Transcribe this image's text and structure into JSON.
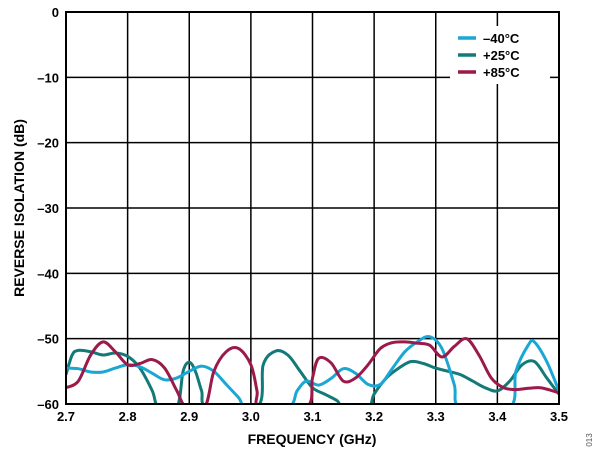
{
  "chart_data": {
    "type": "line",
    "xlabel": "FREQUENCY (GHz)",
    "ylabel": "REVERSE ISOLATION (dB)",
    "xlim": [
      2.7,
      3.5
    ],
    "ylim": [
      -60,
      0
    ],
    "xticks": [
      "2.7",
      "2.8",
      "2.9",
      "3.0",
      "3.1",
      "3.2",
      "3.3",
      "3.4",
      "3.5"
    ],
    "yticks": [
      "0",
      "–10",
      "–20",
      "–30",
      "–40",
      "–50",
      "–60"
    ],
    "xtick_values": [
      2.7,
      2.8,
      2.9,
      3.0,
      3.1,
      3.2,
      3.3,
      3.4,
      3.5
    ],
    "ytick_values": [
      0,
      -10,
      -20,
      -30,
      -40,
      -50,
      -60
    ],
    "grid": true,
    "legend_position": "top-right",
    "figure_id": "013",
    "series": [
      {
        "name": "–40°C",
        "color": "#1aa7d4",
        "points": [
          [
            2.7,
            -54.5
          ],
          [
            2.72,
            -54.6
          ],
          [
            2.74,
            -55.1
          ],
          [
            2.76,
            -55.1
          ],
          [
            2.78,
            -54.5
          ],
          [
            2.8,
            -54.0
          ],
          [
            2.82,
            -54.3
          ],
          [
            2.84,
            -55.3
          ],
          [
            2.86,
            -56.3
          ],
          [
            2.88,
            -56.0
          ],
          [
            2.9,
            -55.0
          ],
          [
            2.92,
            -54.2
          ],
          [
            2.94,
            -55.0
          ],
          [
            2.96,
            -57.0
          ],
          [
            2.98,
            -59.0
          ],
          [
            2.995,
            -60.5
          ],
          [
            3.06,
            -60.5
          ],
          [
            3.075,
            -58.0
          ],
          [
            3.09,
            -56.5
          ],
          [
            3.11,
            -57.1
          ],
          [
            3.13,
            -56.1
          ],
          [
            3.15,
            -54.6
          ],
          [
            3.17,
            -55.3
          ],
          [
            3.19,
            -57.0
          ],
          [
            3.21,
            -57.0
          ],
          [
            3.23,
            -54.5
          ],
          [
            3.25,
            -52.0
          ],
          [
            3.27,
            -50.5
          ],
          [
            3.29,
            -49.7
          ],
          [
            3.31,
            -51.5
          ],
          [
            3.33,
            -57.0
          ],
          [
            3.34,
            -60.5
          ],
          [
            3.42,
            -60.5
          ],
          [
            3.43,
            -55.0
          ],
          [
            3.45,
            -51.0
          ],
          [
            3.46,
            -50.5
          ],
          [
            3.48,
            -53.5
          ],
          [
            3.5,
            -58.0
          ]
        ]
      },
      {
        "name": "+25°C",
        "color": "#127a78",
        "points": [
          [
            2.7,
            -55.5
          ],
          [
            2.71,
            -52.5
          ],
          [
            2.72,
            -51.8
          ],
          [
            2.74,
            -52.0
          ],
          [
            2.76,
            -52.5
          ],
          [
            2.78,
            -52.2
          ],
          [
            2.8,
            -52.7
          ],
          [
            2.82,
            -54.5
          ],
          [
            2.84,
            -58.0
          ],
          [
            2.85,
            -60.5
          ],
          [
            2.88,
            -60.5
          ],
          [
            2.89,
            -55.0
          ],
          [
            2.9,
            -53.6
          ],
          [
            2.91,
            -55.0
          ],
          [
            2.92,
            -58.0
          ],
          [
            2.93,
            -60.5
          ],
          [
            3.01,
            -60.5
          ],
          [
            3.02,
            -54.0
          ],
          [
            3.04,
            -51.9
          ],
          [
            3.06,
            -52.5
          ],
          [
            3.08,
            -55.0
          ],
          [
            3.1,
            -57.5
          ],
          [
            3.12,
            -58.5
          ],
          [
            3.14,
            -59.5
          ],
          [
            3.15,
            -60.5
          ],
          [
            3.19,
            -60.5
          ],
          [
            3.2,
            -58.5
          ],
          [
            3.22,
            -56.0
          ],
          [
            3.24,
            -54.5
          ],
          [
            3.26,
            -53.5
          ],
          [
            3.28,
            -53.8
          ],
          [
            3.3,
            -54.5
          ],
          [
            3.32,
            -55.0
          ],
          [
            3.34,
            -55.5
          ],
          [
            3.36,
            -56.5
          ],
          [
            3.38,
            -57.5
          ],
          [
            3.4,
            -58.0
          ],
          [
            3.42,
            -56.5
          ],
          [
            3.44,
            -54.0
          ],
          [
            3.46,
            -53.5
          ],
          [
            3.48,
            -56.0
          ],
          [
            3.5,
            -58.5
          ]
        ]
      },
      {
        "name": "+85°C",
        "color": "#9b1a4a",
        "points": [
          [
            2.7,
            -57.5
          ],
          [
            2.72,
            -56.5
          ],
          [
            2.74,
            -52.5
          ],
          [
            2.76,
            -50.5
          ],
          [
            2.78,
            -52.0
          ],
          [
            2.8,
            -54.0
          ],
          [
            2.82,
            -53.8
          ],
          [
            2.84,
            -53.2
          ],
          [
            2.86,
            -54.5
          ],
          [
            2.88,
            -58.0
          ],
          [
            2.895,
            -60.5
          ],
          [
            2.925,
            -60.5
          ],
          [
            2.94,
            -55.0
          ],
          [
            2.96,
            -52.0
          ],
          [
            2.98,
            -51.5
          ],
          [
            3.0,
            -54.0
          ],
          [
            3.01,
            -58.0
          ],
          [
            3.015,
            -60.5
          ],
          [
            3.09,
            -60.5
          ],
          [
            3.1,
            -56.0
          ],
          [
            3.11,
            -53.0
          ],
          [
            3.13,
            -53.7
          ],
          [
            3.15,
            -56.5
          ],
          [
            3.17,
            -56.0
          ],
          [
            3.19,
            -54.0
          ],
          [
            3.21,
            -51.5
          ],
          [
            3.23,
            -50.6
          ],
          [
            3.25,
            -50.5
          ],
          [
            3.27,
            -50.7
          ],
          [
            3.29,
            -51.0
          ],
          [
            3.31,
            -52.8
          ],
          [
            3.33,
            -51.2
          ],
          [
            3.35,
            -50.0
          ],
          [
            3.37,
            -52.5
          ],
          [
            3.39,
            -56.0
          ],
          [
            3.41,
            -57.5
          ],
          [
            3.43,
            -57.8
          ],
          [
            3.45,
            -57.6
          ],
          [
            3.47,
            -57.5
          ],
          [
            3.49,
            -58.0
          ],
          [
            3.5,
            -58.3
          ]
        ]
      }
    ]
  }
}
